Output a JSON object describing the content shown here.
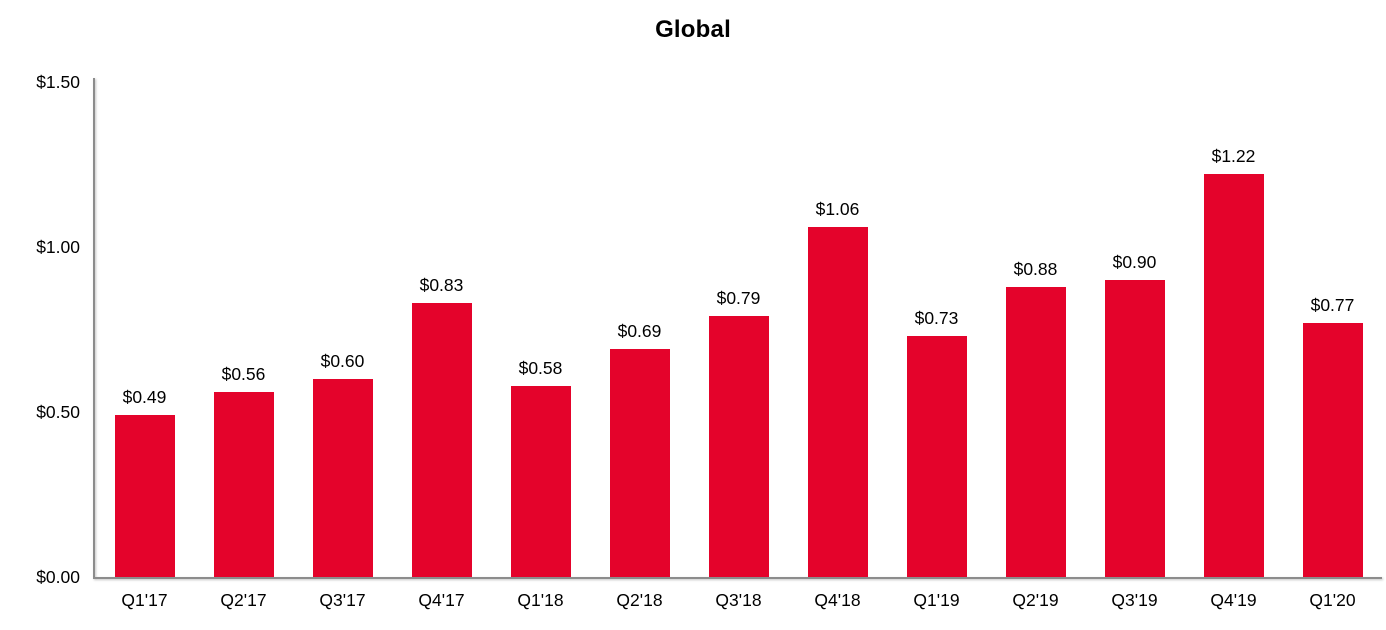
{
  "chart_data": {
    "type": "bar",
    "title": "Global",
    "categories": [
      "Q1'17",
      "Q2'17",
      "Q3'17",
      "Q4'17",
      "Q1'18",
      "Q2'18",
      "Q3'18",
      "Q4'18",
      "Q1'19",
      "Q2'19",
      "Q3'19",
      "Q4'19",
      "Q1'20"
    ],
    "values": [
      0.49,
      0.56,
      0.6,
      0.83,
      0.58,
      0.69,
      0.79,
      1.06,
      0.73,
      0.88,
      0.9,
      1.22,
      0.77
    ],
    "value_labels": [
      "$0.49",
      "$0.56",
      "$0.60",
      "$0.83",
      "$0.58",
      "$0.69",
      "$0.79",
      "$1.06",
      "$0.73",
      "$0.88",
      "$0.90",
      "$1.22",
      "$0.77"
    ],
    "xlabel": "",
    "ylabel": "",
    "ylim": [
      0,
      1.5
    ],
    "y_ticks": [
      {
        "value": 0.0,
        "label": "$0.00"
      },
      {
        "value": 0.5,
        "label": "$0.50"
      },
      {
        "value": 1.0,
        "label": "$1.00"
      },
      {
        "value": 1.5,
        "label": "$1.50"
      }
    ],
    "grid": false,
    "legend": "none",
    "bar_color": "#e4032b",
    "axis_color": "#8c8c8c",
    "text_color": "#000000"
  }
}
